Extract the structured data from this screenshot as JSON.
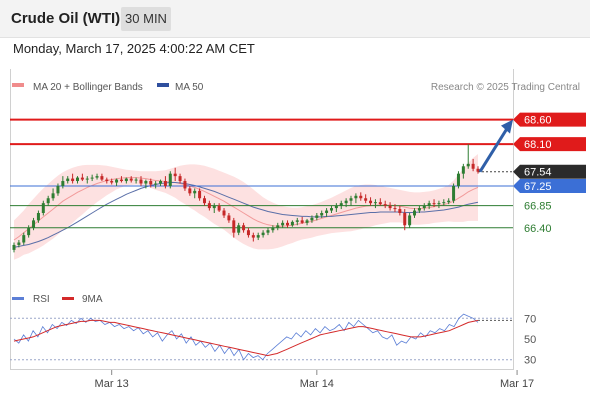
{
  "header": {
    "title": "Crude Oil (WTI)",
    "timeframe": "30 MIN"
  },
  "timestamp": "Monday, March 17, 2025 4:00:22 AM CET",
  "chart_data": [
    {
      "type": "candlestick",
      "legend": [
        {
          "label": "MA 20 + Bollinger Bands",
          "color": "#f08c8c"
        },
        {
          "label": "MA 50",
          "color": "#2f4f9e"
        }
      ],
      "copyright": "Research © 2025 Trading Central",
      "ylim": [
        65.5,
        69.1
      ],
      "levels": [
        {
          "label": "68.60",
          "value": 68.6,
          "style": "resistance",
          "color": "#e01b1b"
        },
        {
          "label": "68.10",
          "value": 68.1,
          "style": "resistance",
          "color": "#e01b1b"
        },
        {
          "label": "67.54",
          "value": 67.54,
          "style": "last",
          "color": "#222222"
        },
        {
          "label": "67.25",
          "value": 67.25,
          "style": "pivot",
          "color": "#3b6fd6"
        },
        {
          "label": "66.85",
          "value": 66.85,
          "style": "support",
          "color": "#2e7d32"
        },
        {
          "label": "66.40",
          "value": 66.4,
          "style": "support",
          "color": "#2e7d32"
        }
      ],
      "x_ticks": [
        {
          "label": "Mar 13",
          "index": 20
        },
        {
          "label": "Mar 14",
          "index": 62
        },
        {
          "label": "Mar 17",
          "index": 103
        }
      ],
      "candles": [
        [
          65.95,
          66.1,
          65.9,
          66.05
        ],
        [
          66.05,
          66.15,
          66.0,
          66.1
        ],
        [
          66.1,
          66.3,
          66.05,
          66.25
        ],
        [
          66.25,
          66.45,
          66.2,
          66.4
        ],
        [
          66.4,
          66.6,
          66.35,
          66.55
        ],
        [
          66.55,
          66.75,
          66.5,
          66.7
        ],
        [
          66.7,
          66.95,
          66.65,
          66.9
        ],
        [
          66.9,
          67.05,
          66.85,
          67.0
        ],
        [
          67.0,
          67.2,
          66.95,
          67.1
        ],
        [
          67.1,
          67.3,
          67.05,
          67.25
        ],
        [
          67.25,
          67.45,
          67.2,
          67.35
        ],
        [
          67.35,
          67.45,
          67.3,
          67.4
        ],
        [
          67.4,
          67.5,
          67.3,
          67.35
        ],
        [
          67.35,
          67.45,
          67.3,
          67.42
        ],
        [
          67.42,
          67.5,
          67.35,
          67.38
        ],
        [
          67.38,
          67.45,
          67.3,
          67.4
        ],
        [
          67.4,
          67.48,
          67.35,
          67.42
        ],
        [
          67.42,
          67.5,
          67.38,
          67.45
        ],
        [
          67.45,
          67.5,
          67.35,
          67.38
        ],
        [
          67.38,
          67.42,
          67.3,
          67.35
        ],
        [
          67.35,
          67.4,
          67.28,
          67.32
        ],
        [
          67.32,
          67.4,
          67.25,
          67.38
        ],
        [
          67.38,
          67.45,
          67.32,
          67.35
        ],
        [
          67.35,
          67.42,
          67.3,
          67.4
        ],
        [
          67.4,
          67.45,
          67.32,
          67.36
        ],
        [
          67.36,
          67.42,
          67.3,
          67.38
        ],
        [
          67.38,
          67.45,
          67.25,
          67.3
        ],
        [
          67.3,
          67.38,
          67.2,
          67.35
        ],
        [
          67.35,
          67.4,
          67.22,
          67.28
        ],
        [
          67.28,
          67.35,
          67.2,
          67.3
        ],
        [
          67.3,
          67.38,
          67.25,
          67.35
        ],
        [
          67.35,
          67.45,
          67.2,
          67.25
        ],
        [
          67.25,
          67.55,
          67.2,
          67.5
        ],
        [
          67.5,
          67.62,
          67.35,
          67.45
        ],
        [
          67.45,
          67.5,
          67.3,
          67.35
        ],
        [
          67.35,
          67.4,
          67.15,
          67.2
        ],
        [
          67.2,
          67.25,
          67.05,
          67.1
        ],
        [
          67.1,
          67.2,
          67.0,
          67.15
        ],
        [
          67.15,
          67.2,
          66.95,
          67.0
        ],
        [
          67.0,
          67.05,
          66.85,
          66.9
        ],
        [
          66.9,
          66.95,
          66.75,
          66.8
        ],
        [
          66.8,
          66.9,
          66.7,
          66.85
        ],
        [
          66.85,
          66.9,
          66.72,
          66.75
        ],
        [
          66.75,
          66.8,
          66.6,
          66.65
        ],
        [
          66.65,
          66.7,
          66.5,
          66.55
        ],
        [
          66.55,
          66.6,
          66.2,
          66.3
        ],
        [
          66.3,
          66.5,
          66.25,
          66.45
        ],
        [
          66.45,
          66.5,
          66.3,
          66.35
        ],
        [
          66.35,
          66.4,
          66.2,
          66.25
        ],
        [
          66.25,
          66.3,
          66.12,
          66.2
        ],
        [
          66.2,
          66.3,
          66.15,
          66.25
        ],
        [
          66.25,
          66.35,
          66.2,
          66.3
        ],
        [
          66.3,
          66.4,
          66.25,
          66.35
        ],
        [
          66.35,
          66.45,
          66.3,
          66.4
        ],
        [
          66.4,
          66.5,
          66.35,
          66.45
        ],
        [
          66.45,
          66.55,
          66.4,
          66.5
        ],
        [
          66.5,
          66.55,
          66.4,
          66.45
        ],
        [
          66.45,
          66.55,
          66.42,
          66.52
        ],
        [
          66.52,
          66.6,
          66.45,
          66.55
        ],
        [
          66.55,
          66.62,
          66.48,
          66.5
        ],
        [
          66.5,
          66.58,
          66.45,
          66.55
        ],
        [
          66.55,
          66.65,
          66.5,
          66.6
        ],
        [
          66.6,
          66.7,
          66.55,
          66.65
        ],
        [
          66.65,
          66.75,
          66.6,
          66.7
        ],
        [
          66.7,
          66.8,
          66.62,
          66.75
        ],
        [
          66.75,
          66.85,
          66.7,
          66.8
        ],
        [
          66.8,
          66.9,
          66.72,
          66.85
        ],
        [
          66.85,
          66.95,
          66.78,
          66.9
        ],
        [
          66.9,
          67.0,
          66.82,
          66.95
        ],
        [
          66.95,
          67.05,
          66.85,
          67.0
        ],
        [
          67.0,
          67.1,
          66.9,
          67.05
        ],
        [
          67.05,
          67.12,
          66.95,
          67.0
        ],
        [
          67.0,
          67.08,
          66.9,
          66.95
        ],
        [
          66.95,
          67.02,
          66.85,
          66.9
        ],
        [
          66.9,
          66.98,
          66.8,
          66.92
        ],
        [
          66.92,
          67.0,
          66.85,
          66.88
        ],
        [
          66.88,
          66.95,
          66.8,
          66.85
        ],
        [
          66.85,
          66.92,
          66.75,
          66.8
        ],
        [
          66.8,
          66.88,
          66.72,
          66.78
        ],
        [
          66.78,
          66.85,
          66.65,
          66.7
        ],
        [
          66.7,
          66.78,
          66.35,
          66.45
        ],
        [
          66.45,
          66.7,
          66.4,
          66.65
        ],
        [
          66.65,
          66.8,
          66.6,
          66.75
        ],
        [
          66.75,
          66.85,
          66.7,
          66.8
        ],
        [
          66.8,
          66.9,
          66.75,
          66.85
        ],
        [
          66.85,
          66.95,
          66.78,
          66.9
        ],
        [
          66.9,
          66.98,
          66.82,
          66.88
        ],
        [
          66.88,
          66.95,
          66.8,
          66.9
        ],
        [
          66.9,
          66.98,
          66.85,
          66.92
        ],
        [
          66.92,
          67.0,
          66.88,
          66.95
        ],
        [
          66.95,
          67.3,
          66.9,
          67.25
        ],
        [
          67.25,
          67.55,
          67.2,
          67.5
        ],
        [
          67.5,
          67.7,
          67.4,
          67.65
        ],
        [
          67.65,
          68.1,
          67.6,
          67.7
        ],
        [
          67.7,
          67.8,
          67.55,
          67.6
        ],
        [
          67.6,
          67.65,
          67.5,
          67.54
        ]
      ],
      "ma20": [
        66.15,
        66.22,
        66.3,
        66.38,
        66.46,
        66.54,
        66.62,
        66.7,
        66.78,
        66.86,
        66.94,
        67.0,
        67.06,
        67.12,
        67.17,
        67.22,
        67.26,
        67.3,
        67.33,
        67.36,
        67.38,
        67.4,
        67.41,
        67.42,
        67.42,
        67.42,
        67.41,
        67.4,
        67.38,
        67.36,
        67.35,
        67.34,
        67.33,
        67.32,
        67.3,
        67.28,
        67.25,
        67.22,
        67.18,
        67.14,
        67.09,
        67.04,
        66.99,
        66.94,
        66.88,
        66.82,
        66.76,
        66.7,
        66.64,
        66.58,
        66.53,
        66.49,
        66.46,
        66.44,
        66.43,
        66.43,
        66.44,
        66.45,
        66.47,
        66.49,
        66.51,
        66.53,
        66.56,
        66.59,
        66.62,
        66.65,
        66.68,
        66.71,
        66.74,
        66.77,
        66.8,
        66.82,
        66.84,
        66.85,
        66.86,
        66.86,
        66.86,
        66.86,
        66.85,
        66.84,
        66.82,
        66.8,
        66.79,
        66.79,
        66.8,
        66.81,
        66.83,
        66.85,
        66.87,
        66.9,
        66.94,
        67.0,
        67.06,
        67.13,
        67.18,
        67.22
      ],
      "bb_upper": [
        66.55,
        66.65,
        66.75,
        66.88,
        66.99,
        67.1,
        67.2,
        67.29,
        67.38,
        67.46,
        67.53,
        67.58,
        67.62,
        67.65,
        67.67,
        67.68,
        67.68,
        67.68,
        67.67,
        67.66,
        67.64,
        67.62,
        67.6,
        67.58,
        67.57,
        67.56,
        67.55,
        67.55,
        67.55,
        67.55,
        67.56,
        67.57,
        67.6,
        67.63,
        67.66,
        67.68,
        67.69,
        67.69,
        67.68,
        67.66,
        67.63,
        67.6,
        67.56,
        67.52,
        67.48,
        67.44,
        67.39,
        67.33,
        67.26,
        67.18,
        67.1,
        67.02,
        66.96,
        66.91,
        66.87,
        66.84,
        66.82,
        66.81,
        66.81,
        66.82,
        66.84,
        66.86,
        66.89,
        66.93,
        66.97,
        67.01,
        67.06,
        67.11,
        67.16,
        67.21,
        67.25,
        67.27,
        67.28,
        67.28,
        67.27,
        67.25,
        67.23,
        67.21,
        67.19,
        67.17,
        67.15,
        67.13,
        67.12,
        67.12,
        67.13,
        67.14,
        67.16,
        67.19,
        67.22,
        67.27,
        67.36,
        67.48,
        67.6,
        67.72,
        67.82,
        67.9
      ],
      "bb_lower": [
        65.75,
        65.79,
        65.85,
        65.88,
        65.93,
        65.98,
        66.04,
        66.11,
        66.18,
        66.26,
        66.35,
        66.42,
        66.5,
        66.59,
        66.67,
        66.76,
        66.84,
        66.92,
        66.99,
        67.06,
        67.12,
        67.18,
        67.22,
        67.26,
        67.27,
        67.28,
        67.27,
        67.25,
        67.21,
        67.17,
        67.14,
        67.11,
        67.06,
        67.01,
        66.94,
        66.88,
        66.81,
        66.75,
        66.68,
        66.62,
        66.55,
        66.48,
        66.42,
        66.36,
        66.28,
        66.2,
        66.13,
        66.07,
        66.02,
        65.98,
        65.96,
        65.96,
        65.96,
        65.97,
        65.99,
        66.02,
        66.06,
        66.09,
        66.13,
        66.16,
        66.18,
        66.2,
        66.23,
        66.25,
        66.27,
        66.29,
        66.3,
        66.31,
        66.32,
        66.33,
        66.35,
        66.37,
        66.4,
        66.42,
        66.45,
        66.47,
        66.49,
        66.51,
        66.51,
        66.51,
        66.49,
        66.47,
        66.46,
        66.46,
        66.47,
        66.48,
        66.5,
        66.51,
        66.52,
        66.53,
        66.52,
        66.52,
        66.52,
        66.54,
        66.54,
        66.54
      ],
      "ma50": [
        66.0,
        66.02,
        66.04,
        66.06,
        66.09,
        66.12,
        66.16,
        66.2,
        66.25,
        66.3,
        66.35,
        66.4,
        66.46,
        66.52,
        66.58,
        66.64,
        66.7,
        66.76,
        66.82,
        66.88,
        66.93,
        66.98,
        67.03,
        67.08,
        67.12,
        67.16,
        67.2,
        67.23,
        67.26,
        67.28,
        67.3,
        67.31,
        67.32,
        67.32,
        67.31,
        67.3,
        67.28,
        67.26,
        67.23,
        67.2,
        67.17,
        67.14,
        67.1,
        67.06,
        67.02,
        66.98,
        66.94,
        66.9,
        66.86,
        66.82,
        66.79,
        66.76,
        66.73,
        66.71,
        66.69,
        66.67,
        66.66,
        66.65,
        66.64,
        66.63,
        66.63,
        66.62,
        66.62,
        66.62,
        66.63,
        66.63,
        66.64,
        66.65,
        66.66,
        66.67,
        66.68,
        66.69,
        66.7,
        66.71,
        66.71,
        66.72,
        66.72,
        66.72,
        66.72,
        66.72,
        66.71,
        66.71,
        66.71,
        66.72,
        66.72,
        66.73,
        66.74,
        66.75,
        66.76,
        66.78,
        66.8,
        66.82,
        66.85,
        66.88,
        66.9,
        66.92
      ],
      "target_arrow": {
        "from": 67.54,
        "to": 68.6
      }
    },
    {
      "type": "line",
      "legend": [
        {
          "label": "RSI",
          "color": "#5c7fd6"
        },
        {
          "label": "9MA",
          "color": "#d42a2a"
        }
      ],
      "ylim": [
        22,
        78
      ],
      "y_ticks": [
        "70",
        "50",
        "30"
      ],
      "rsi": [
        50,
        46,
        54,
        48,
        58,
        52,
        62,
        56,
        64,
        60,
        66,
        63,
        68,
        65,
        70,
        66,
        70,
        67,
        68,
        64,
        66,
        62,
        64,
        60,
        62,
        58,
        61,
        55,
        58,
        52,
        56,
        48,
        54,
        58,
        50,
        55,
        46,
        52,
        44,
        48,
        42,
        46,
        38,
        44,
        36,
        42,
        34,
        40,
        30,
        36,
        32,
        34,
        30,
        36,
        40,
        44,
        48,
        52,
        50,
        56,
        52,
        58,
        54,
        60,
        56,
        62,
        58,
        60,
        64,
        58,
        66,
        62,
        68,
        64,
        60,
        56,
        58,
        52,
        50,
        54,
        44,
        48,
        46,
        52,
        50,
        56,
        52,
        58,
        56,
        60,
        58,
        64,
        62,
        70,
        74,
        72,
        70,
        66
      ],
      "rsi_ma": [
        48,
        49,
        50,
        51,
        52,
        54,
        56,
        58,
        60,
        62,
        63,
        64,
        65,
        66,
        67,
        67,
        68,
        68,
        68,
        67,
        66,
        66,
        65,
        64,
        63,
        62,
        61,
        60,
        59,
        58,
        57,
        56,
        55,
        54,
        53,
        52,
        51,
        50,
        49,
        48,
        47,
        46,
        45,
        44,
        43,
        42,
        41,
        40,
        39,
        38,
        37,
        36,
        35,
        34,
        35,
        36,
        38,
        40,
        42,
        44,
        46,
        48,
        50,
        52,
        54,
        55,
        56,
        57,
        58,
        59,
        60,
        61,
        62,
        62,
        61,
        60,
        59,
        58,
        57,
        56,
        55,
        54,
        53,
        52,
        52,
        52,
        53,
        54,
        55,
        56,
        57,
        58,
        60,
        62,
        64,
        66,
        67,
        68
      ]
    }
  ]
}
